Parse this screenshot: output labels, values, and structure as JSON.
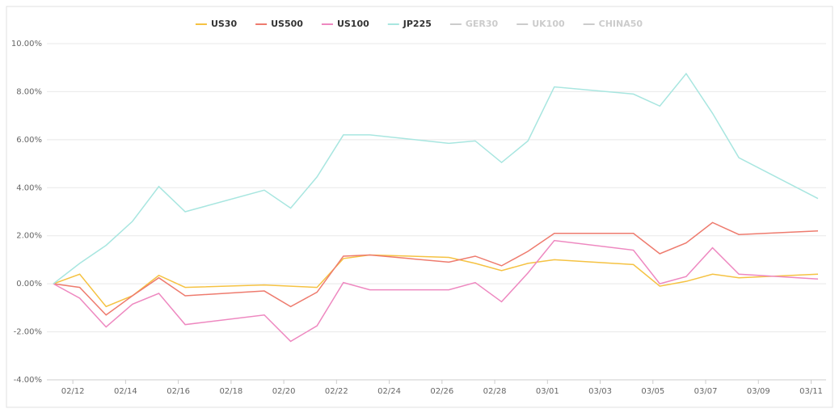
{
  "chart_data": {
    "type": "line",
    "x": [
      0,
      1,
      2,
      3,
      4,
      5,
      8,
      9,
      10,
      11,
      12,
      15,
      16,
      17,
      18,
      19,
      22,
      23,
      24,
      25,
      26,
      29
    ],
    "xlim": [
      0,
      29
    ],
    "xticks": [
      {
        "value": 0.74,
        "label": "02/12"
      },
      {
        "value": 2.74,
        "label": "02/14"
      },
      {
        "value": 4.74,
        "label": "02/16"
      },
      {
        "value": 6.74,
        "label": "02/18"
      },
      {
        "value": 8.74,
        "label": "02/20"
      },
      {
        "value": 10.74,
        "label": "02/22"
      },
      {
        "value": 12.74,
        "label": "02/24"
      },
      {
        "value": 14.74,
        "label": "02/26"
      },
      {
        "value": 16.74,
        "label": "02/28"
      },
      {
        "value": 18.74,
        "label": "03/01"
      },
      {
        "value": 20.74,
        "label": "03/03"
      },
      {
        "value": 22.74,
        "label": "03/05"
      },
      {
        "value": 24.74,
        "label": "03/07"
      },
      {
        "value": 26.74,
        "label": "03/09"
      },
      {
        "value": 28.74,
        "label": "03/11"
      }
    ],
    "ylim": [
      -4,
      10
    ],
    "yticks": [
      {
        "value": -4,
        "label": "-4.00%"
      },
      {
        "value": -2,
        "label": "-2.00%"
      },
      {
        "value": 0,
        "label": "0.00%"
      },
      {
        "value": 2,
        "label": "2.00%"
      },
      {
        "value": 4,
        "label": "4.00%"
      },
      {
        "value": 6,
        "label": "6.00%"
      },
      {
        "value": 8,
        "label": "8.00%"
      },
      {
        "value": 10,
        "label": "10.00%"
      }
    ],
    "grid": true,
    "series": [
      {
        "name": "US30",
        "color": "#f5c242",
        "values": [
          0,
          0.4,
          -0.95,
          -0.5,
          0.35,
          -0.15,
          -0.05,
          -0.1,
          -0.15,
          1.05,
          1.2,
          1.1,
          0.85,
          0.55,
          0.85,
          1.0,
          0.8,
          -0.1,
          0.1,
          0.4,
          0.25,
          0.4
        ]
      },
      {
        "name": "US500",
        "color": "#ee7b6e",
        "values": [
          0,
          -0.15,
          -1.3,
          -0.5,
          0.25,
          -0.5,
          -0.3,
          -0.95,
          -0.35,
          1.15,
          1.2,
          0.9,
          1.15,
          0.75,
          1.35,
          2.1,
          2.1,
          1.25,
          1.7,
          2.55,
          2.05,
          2.2
        ]
      },
      {
        "name": "US100",
        "color": "#ee88c0",
        "values": [
          0,
          -0.6,
          -1.8,
          -0.85,
          -0.4,
          -1.7,
          -1.3,
          -2.4,
          -1.75,
          0.05,
          -0.25,
          -0.25,
          0.05,
          -0.75,
          0.45,
          1.8,
          1.4,
          0.0,
          0.3,
          1.5,
          0.4,
          0.2
        ]
      },
      {
        "name": "JP225",
        "color": "#a8e6e0",
        "values": [
          0,
          0.85,
          1.6,
          2.6,
          4.05,
          3.0,
          3.9,
          3.15,
          4.45,
          6.2,
          6.2,
          5.85,
          5.95,
          5.05,
          5.95,
          8.2,
          7.9,
          7.4,
          8.75,
          7.1,
          5.25,
          3.55
        ]
      }
    ],
    "hidden_legend": [
      "GER30",
      "UK100",
      "CHINA50"
    ],
    "hidden_color": "#cccccc"
  }
}
